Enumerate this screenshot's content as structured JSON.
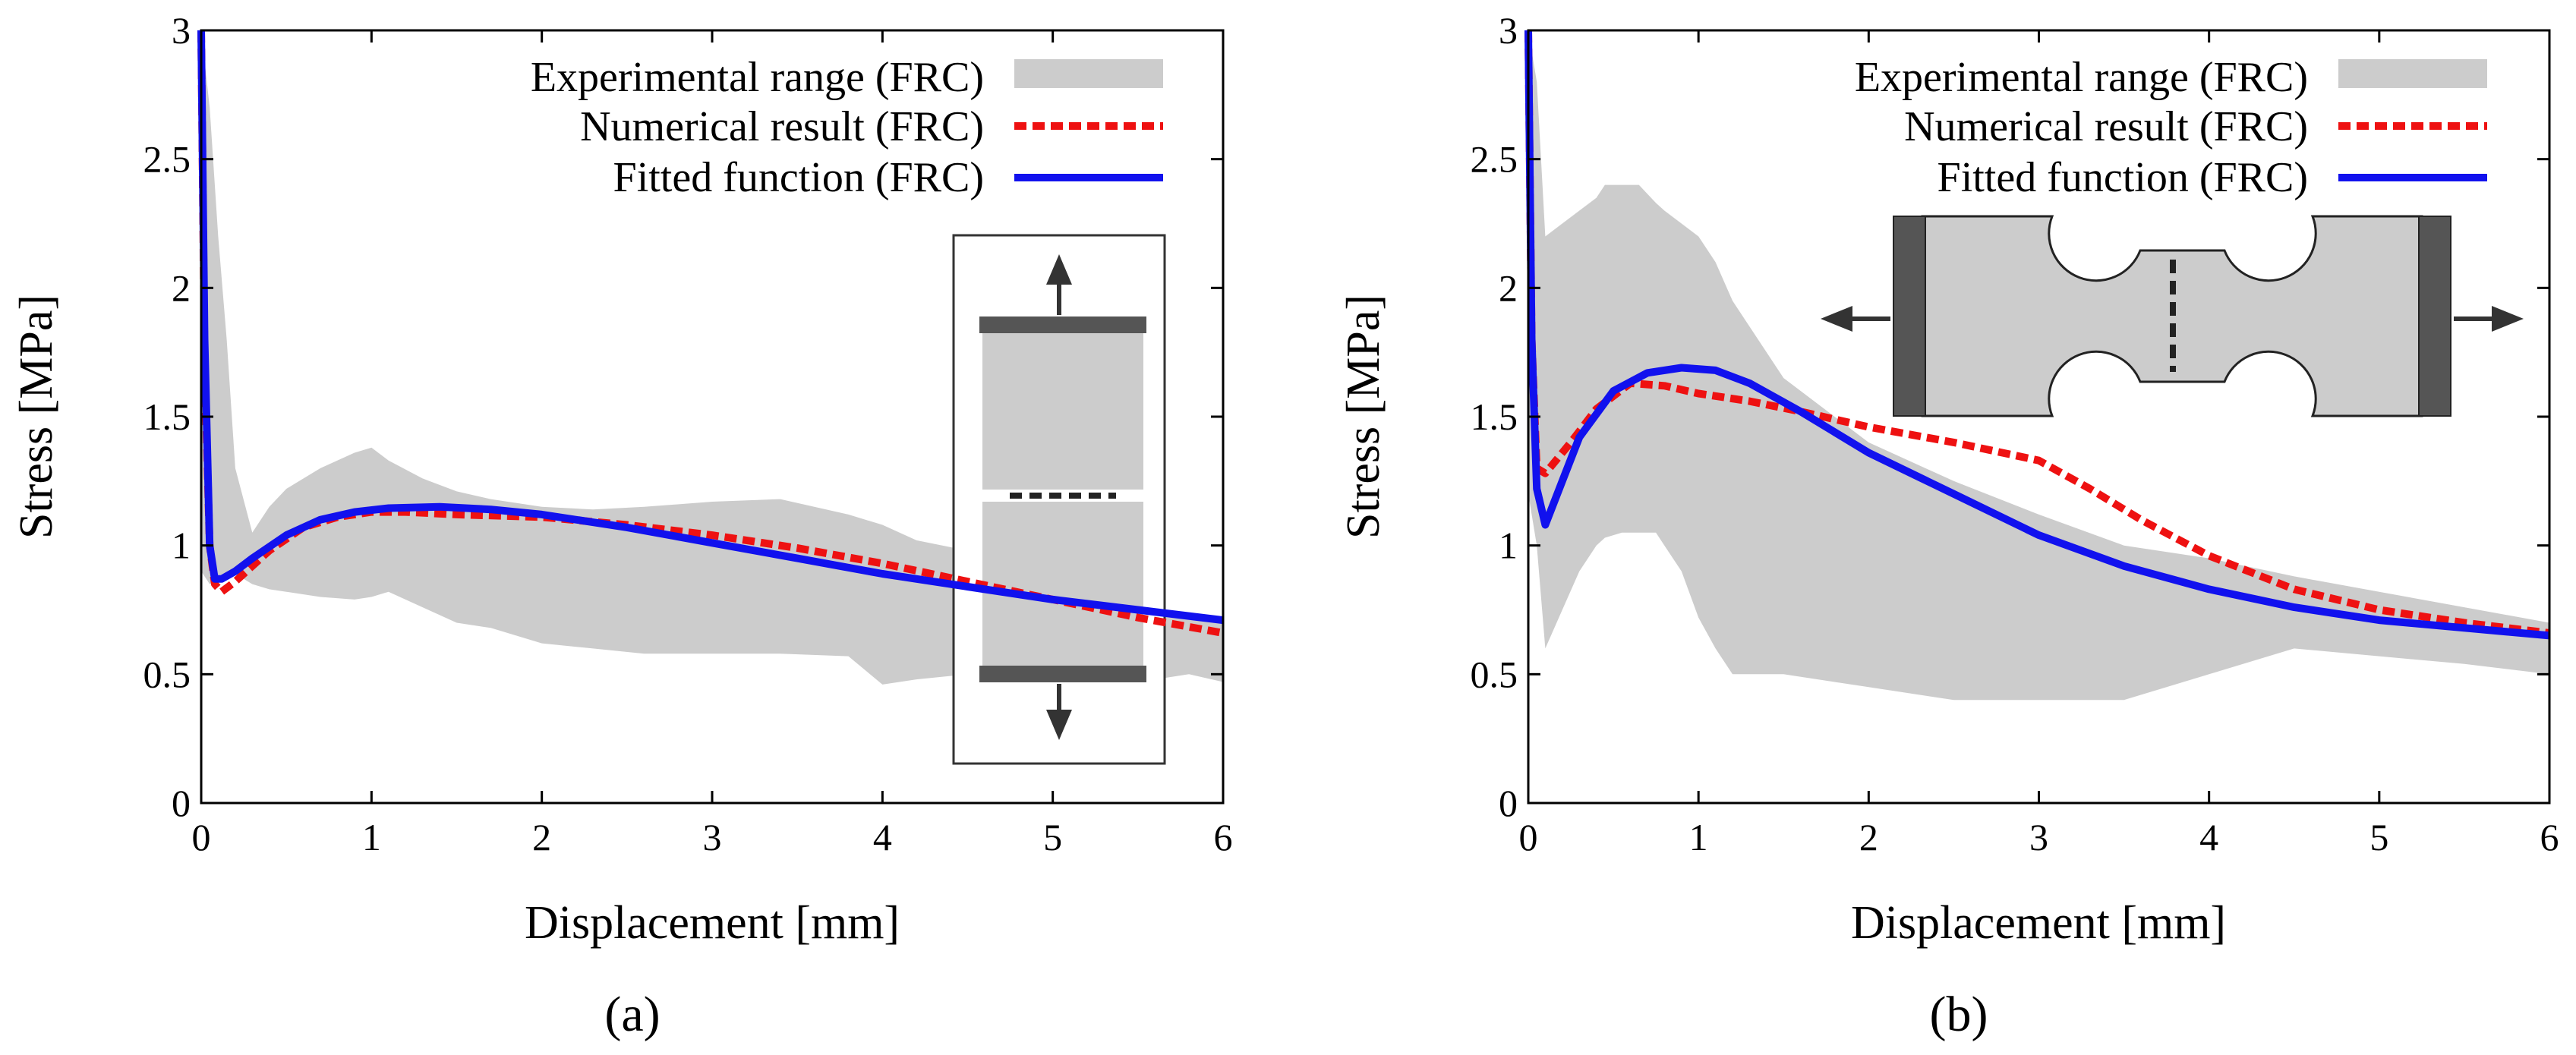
{
  "chart_data": [
    {
      "type": "line",
      "subplot_label": "(a)",
      "xlabel": "Displacement [mm]",
      "ylabel": "Stress [MPa]",
      "xlim": [
        0,
        6
      ],
      "ylim": [
        0,
        3
      ],
      "xticks": [
        "0",
        "1",
        "2",
        "3",
        "4",
        "5",
        "6"
      ],
      "yticks": [
        "0",
        "0.5",
        "1",
        "1.5",
        "2",
        "2.5",
        "3"
      ],
      "legend_position": "top-right",
      "series": [
        {
          "name": "Experimental range (FRC)",
          "kind": "band",
          "color": "#cccccc",
          "x": [
            0,
            0.05,
            0.1,
            0.15,
            0.2,
            0.3,
            0.4,
            0.5,
            0.7,
            0.9,
            1.0,
            1.1,
            1.3,
            1.5,
            1.7,
            2.0,
            2.3,
            2.6,
            3.0,
            3.4,
            3.8,
            4.0,
            4.2,
            4.5,
            4.8,
            5.0,
            5.3,
            5.6,
            5.8,
            6.0
          ],
          "upper": [
            3.0,
            2.7,
            2.2,
            1.8,
            1.3,
            1.05,
            1.15,
            1.22,
            1.3,
            1.36,
            1.38,
            1.33,
            1.26,
            1.21,
            1.18,
            1.15,
            1.14,
            1.15,
            1.17,
            1.18,
            1.12,
            1.08,
            1.02,
            0.98,
            0.92,
            0.9,
            0.84,
            0.76,
            0.72,
            0.7
          ],
          "lower": [
            0.9,
            0.85,
            0.87,
            0.88,
            0.89,
            0.85,
            0.83,
            0.82,
            0.8,
            0.79,
            0.8,
            0.82,
            0.76,
            0.7,
            0.68,
            0.62,
            0.6,
            0.58,
            0.58,
            0.58,
            0.57,
            0.46,
            0.48,
            0.5,
            0.52,
            0.5,
            0.48,
            0.48,
            0.5,
            0.47
          ]
        },
        {
          "name": "Numerical result (FRC)",
          "kind": "dashed",
          "color": "#ee1111",
          "x": [
            0,
            0.02,
            0.05,
            0.08,
            0.12,
            0.2,
            0.3,
            0.4,
            0.6,
            0.8,
            1.0,
            1.2,
            1.5,
            2.0,
            2.5,
            3.0,
            3.5,
            4.0,
            4.5,
            5.0,
            5.5,
            6.0
          ],
          "y": [
            3.0,
            1.7,
            1.0,
            0.85,
            0.82,
            0.86,
            0.92,
            0.98,
            1.07,
            1.11,
            1.13,
            1.13,
            1.12,
            1.11,
            1.08,
            1.04,
            0.99,
            0.93,
            0.86,
            0.79,
            0.72,
            0.66
          ]
        },
        {
          "name": "Fitted function (FRC)",
          "kind": "solid",
          "color": "#1111ee",
          "x": [
            0,
            0.02,
            0.05,
            0.08,
            0.12,
            0.2,
            0.3,
            0.5,
            0.7,
            0.9,
            1.1,
            1.4,
            1.7,
            2.0,
            2.5,
            3.0,
            3.5,
            4.0,
            4.5,
            5.0,
            5.5,
            6.0
          ],
          "y": [
            3.0,
            1.8,
            1.0,
            0.87,
            0.87,
            0.9,
            0.95,
            1.04,
            1.1,
            1.13,
            1.145,
            1.15,
            1.14,
            1.12,
            1.07,
            1.01,
            0.95,
            0.89,
            0.84,
            0.79,
            0.75,
            0.71
          ]
        }
      ]
    },
    {
      "type": "line",
      "subplot_label": "(b)",
      "xlabel": "Displacement [mm]",
      "ylabel": "Stress [MPa]",
      "xlim": [
        0,
        6
      ],
      "ylim": [
        0,
        3
      ],
      "xticks": [
        "0",
        "1",
        "2",
        "3",
        "4",
        "5",
        "6"
      ],
      "yticks": [
        "0",
        "0.5",
        "1",
        "1.5",
        "2",
        "2.5",
        "3"
      ],
      "legend_position": "top-right",
      "series": [
        {
          "name": "Experimental range (FRC)",
          "kind": "band",
          "color": "#cccccc",
          "x": [
            0,
            0.05,
            0.1,
            0.2,
            0.3,
            0.4,
            0.45,
            0.55,
            0.65,
            0.75,
            0.8,
            0.9,
            1.0,
            1.1,
            1.2,
            1.5,
            2.0,
            2.5,
            3.0,
            3.5,
            4.0,
            4.5,
            5.0,
            5.5,
            6.0
          ],
          "upper": [
            3.0,
            2.8,
            2.2,
            2.25,
            2.3,
            2.35,
            2.4,
            2.4,
            2.4,
            2.33,
            2.3,
            2.25,
            2.2,
            2.1,
            1.95,
            1.65,
            1.4,
            1.25,
            1.12,
            1.0,
            0.95,
            0.88,
            0.82,
            0.76,
            0.7
          ],
          "lower": [
            1.2,
            1.0,
            0.6,
            0.75,
            0.9,
            1.0,
            1.03,
            1.05,
            1.05,
            1.05,
            1.0,
            0.9,
            0.72,
            0.6,
            0.5,
            0.5,
            0.45,
            0.4,
            0.4,
            0.4,
            0.5,
            0.6,
            0.57,
            0.54,
            0.5
          ]
        },
        {
          "name": "Numerical result (FRC)",
          "kind": "dashed",
          "color": "#ee1111",
          "x": [
            0,
            0.02,
            0.05,
            0.1,
            0.15,
            0.25,
            0.4,
            0.6,
            0.8,
            1.0,
            1.3,
            1.6,
            2.0,
            2.5,
            3.0,
            3.3,
            3.6,
            4.0,
            4.5,
            5.0,
            5.5,
            6.0
          ],
          "y": [
            3.0,
            1.8,
            1.3,
            1.28,
            1.32,
            1.4,
            1.53,
            1.63,
            1.62,
            1.59,
            1.56,
            1.52,
            1.46,
            1.4,
            1.33,
            1.22,
            1.1,
            0.96,
            0.83,
            0.75,
            0.7,
            0.66
          ]
        },
        {
          "name": "Fitted function (FRC)",
          "kind": "solid",
          "color": "#1111ee",
          "x": [
            0,
            0.02,
            0.05,
            0.1,
            0.2,
            0.3,
            0.5,
            0.7,
            0.9,
            1.1,
            1.3,
            1.6,
            2.0,
            2.5,
            3.0,
            3.5,
            4.0,
            4.5,
            5.0,
            5.5,
            6.0
          ],
          "y": [
            3.0,
            1.8,
            1.22,
            1.08,
            1.25,
            1.42,
            1.6,
            1.67,
            1.69,
            1.68,
            1.63,
            1.52,
            1.36,
            1.2,
            1.04,
            0.92,
            0.83,
            0.76,
            0.71,
            0.68,
            0.65
          ]
        }
      ]
    }
  ]
}
